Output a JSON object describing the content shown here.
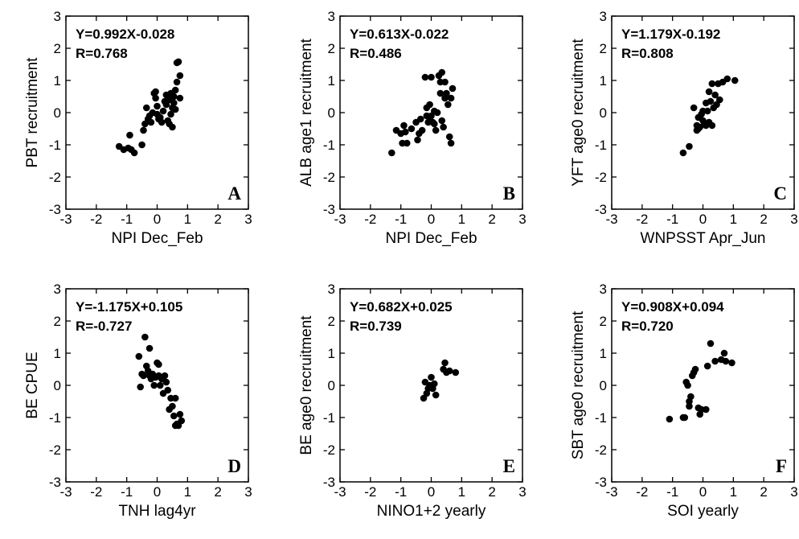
{
  "chart_data": [
    {
      "type": "scatter",
      "panel": "A",
      "xlabel": "NPI Dec_Feb",
      "ylabel": "PBT recruitment",
      "equation": "Y=0.992X-0.028",
      "r_text": "R=0.768",
      "xlim": [
        -3,
        3
      ],
      "ylim": [
        -3,
        3
      ],
      "points": [
        [
          -1.25,
          -1.05
        ],
        [
          -1.1,
          -1.15
        ],
        [
          -0.95,
          -1.1
        ],
        [
          -0.9,
          -0.7
        ],
        [
          -0.85,
          -1.15
        ],
        [
          -0.75,
          -1.25
        ],
        [
          -0.5,
          -1.0
        ],
        [
          -0.45,
          -0.55
        ],
        [
          -0.4,
          -0.35
        ],
        [
          -0.35,
          0.15
        ],
        [
          -0.3,
          -0.2
        ],
        [
          -0.25,
          -0.1
        ],
        [
          -0.2,
          -0.3
        ],
        [
          -0.15,
          0.0
        ],
        [
          -0.1,
          0.6
        ],
        [
          -0.05,
          0.65
        ],
        [
          -0.05,
          0.45
        ],
        [
          0.0,
          0.2
        ],
        [
          0.0,
          -0.05
        ],
        [
          0.05,
          -0.2
        ],
        [
          0.1,
          -0.15
        ],
        [
          0.15,
          -0.3
        ],
        [
          0.2,
          0.05
        ],
        [
          0.25,
          0.35
        ],
        [
          0.3,
          0.25
        ],
        [
          0.3,
          0.55
        ],
        [
          0.35,
          -0.25
        ],
        [
          0.4,
          -0.35
        ],
        [
          0.4,
          0.4
        ],
        [
          0.45,
          0.6
        ],
        [
          0.45,
          -0.05
        ],
        [
          0.5,
          0.15
        ],
        [
          0.5,
          -0.45
        ],
        [
          0.55,
          0.5
        ],
        [
          0.55,
          0.3
        ],
        [
          0.6,
          0.7
        ],
        [
          0.6,
          0.1
        ],
        [
          0.65,
          0.95
        ],
        [
          0.65,
          1.55
        ],
        [
          0.7,
          1.58
        ],
        [
          0.75,
          1.15
        ],
        [
          0.75,
          0.45
        ]
      ]
    },
    {
      "type": "scatter",
      "panel": "B",
      "xlabel": "NPI Dec_Feb",
      "ylabel": "ALB age1 recruitment",
      "equation": "Y=0.613X-0.022",
      "r_text": "R=0.486",
      "xlim": [
        -3,
        3
      ],
      "ylim": [
        -3,
        3
      ],
      "points": [
        [
          -1.3,
          -1.25
        ],
        [
          -1.15,
          -0.55
        ],
        [
          -1.0,
          -0.65
        ],
        [
          -0.95,
          -0.95
        ],
        [
          -0.9,
          -0.4
        ],
        [
          -0.85,
          -0.6
        ],
        [
          -0.8,
          -0.95
        ],
        [
          -0.65,
          -0.5
        ],
        [
          -0.5,
          -0.3
        ],
        [
          -0.45,
          -0.85
        ],
        [
          -0.4,
          -0.65
        ],
        [
          -0.35,
          -0.2
        ],
        [
          -0.3,
          -0.55
        ],
        [
          -0.2,
          1.1
        ],
        [
          -0.15,
          0.15
        ],
        [
          -0.15,
          -0.1
        ],
        [
          -0.1,
          -0.3
        ],
        [
          -0.05,
          -0.15
        ],
        [
          -0.05,
          0.25
        ],
        [
          0.0,
          1.1
        ],
        [
          0.0,
          -0.1
        ],
        [
          0.05,
          -0.3
        ],
        [
          0.1,
          0.05
        ],
        [
          0.1,
          -0.35
        ],
        [
          0.15,
          -0.55
        ],
        [
          0.2,
          0.0
        ],
        [
          0.25,
          1.15
        ],
        [
          0.3,
          0.95
        ],
        [
          0.3,
          0.6
        ],
        [
          0.35,
          1.25
        ],
        [
          0.35,
          -0.25
        ],
        [
          0.4,
          -0.45
        ],
        [
          0.45,
          0.45
        ],
        [
          0.45,
          0.95
        ],
        [
          0.5,
          0.6
        ],
        [
          0.55,
          0.25
        ],
        [
          0.6,
          -0.75
        ],
        [
          0.65,
          0.45
        ],
        [
          0.65,
          -0.95
        ],
        [
          0.7,
          0.75
        ]
      ]
    },
    {
      "type": "scatter",
      "panel": "C",
      "xlabel": "WNPSST Apr_Jun",
      "ylabel": "YFT age0 recruitment",
      "equation": "Y=1.179X-0.192",
      "r_text": "R=0.808",
      "xlim": [
        -3,
        3
      ],
      "ylim": [
        -3,
        3
      ],
      "points": [
        [
          -0.65,
          -1.25
        ],
        [
          -0.45,
          -1.05
        ],
        [
          -0.3,
          0.15
        ],
        [
          -0.2,
          -0.55
        ],
        [
          -0.2,
          -0.4
        ],
        [
          -0.15,
          -0.5
        ],
        [
          -0.15,
          -0.15
        ],
        [
          -0.1,
          -0.45
        ],
        [
          -0.05,
          -0.05
        ],
        [
          0.0,
          0.05
        ],
        [
          0.0,
          -0.25
        ],
        [
          0.05,
          -0.35
        ],
        [
          0.1,
          0.3
        ],
        [
          0.1,
          -0.4
        ],
        [
          0.15,
          0.05
        ],
        [
          0.2,
          0.65
        ],
        [
          0.2,
          -0.3
        ],
        [
          0.25,
          0.35
        ],
        [
          0.3,
          0.9
        ],
        [
          0.3,
          -0.4
        ],
        [
          0.35,
          0.15
        ],
        [
          0.4,
          0.55
        ],
        [
          0.45,
          0.25
        ],
        [
          0.5,
          0.9
        ],
        [
          0.55,
          0.4
        ],
        [
          0.65,
          0.95
        ],
        [
          0.8,
          1.05
        ],
        [
          1.05,
          1.0
        ]
      ]
    },
    {
      "type": "scatter",
      "panel": "D",
      "xlabel": "TNH lag4yr",
      "ylabel": "BE CPUE",
      "equation": "Y=-1.175X+0.105",
      "r_text": "R=-0.727",
      "xlim": [
        -3,
        3
      ],
      "ylim": [
        -3,
        3
      ],
      "points": [
        [
          -0.6,
          0.9
        ],
        [
          -0.55,
          -0.05
        ],
        [
          -0.5,
          0.35
        ],
        [
          -0.45,
          0.3
        ],
        [
          -0.4,
          1.5
        ],
        [
          -0.35,
          0.6
        ],
        [
          -0.3,
          0.45
        ],
        [
          -0.25,
          1.15
        ],
        [
          -0.25,
          0.3
        ],
        [
          -0.2,
          0.2
        ],
        [
          -0.15,
          0.35
        ],
        [
          -0.1,
          0.0
        ],
        [
          -0.05,
          0.25
        ],
        [
          0.0,
          0.7
        ],
        [
          0.05,
          0.3
        ],
        [
          0.05,
          0.65
        ],
        [
          0.1,
          0.0
        ],
        [
          0.15,
          0.2
        ],
        [
          0.2,
          -0.25
        ],
        [
          0.25,
          0.3
        ],
        [
          0.3,
          0.1
        ],
        [
          0.35,
          -0.15
        ],
        [
          0.4,
          -0.75
        ],
        [
          0.45,
          -0.4
        ],
        [
          0.5,
          -0.65
        ],
        [
          0.55,
          -0.95
        ],
        [
          0.6,
          -0.4
        ],
        [
          0.6,
          -1.25
        ],
        [
          0.65,
          -1.2
        ],
        [
          0.7,
          -1.25
        ],
        [
          0.75,
          -0.9
        ],
        [
          0.8,
          -1.1
        ]
      ]
    },
    {
      "type": "scatter",
      "panel": "E",
      "xlabel": "NINO1+2 yearly",
      "ylabel": "BE age0 recruitment",
      "equation": "Y=0.682X+0.025",
      "r_text": "R=0.739",
      "xlim": [
        -3,
        3
      ],
      "ylim": [
        -3,
        3
      ],
      "points": [
        [
          -0.25,
          -0.4
        ],
        [
          -0.2,
          0.1
        ],
        [
          -0.15,
          -0.25
        ],
        [
          -0.1,
          -0.1
        ],
        [
          -0.05,
          0.0
        ],
        [
          0.0,
          0.25
        ],
        [
          0.05,
          -0.1
        ],
        [
          0.1,
          0.05
        ],
        [
          0.15,
          -0.3
        ],
        [
          0.4,
          0.5
        ],
        [
          0.45,
          0.7
        ],
        [
          0.5,
          0.4
        ],
        [
          0.6,
          0.45
        ],
        [
          0.8,
          0.4
        ]
      ]
    },
    {
      "type": "scatter",
      "panel": "F",
      "xlabel": "SOI yearly",
      "ylabel": "SBT age0 recruitment",
      "equation": "Y=0.908X+0.094",
      "r_text": "R=0.720",
      "xlim": [
        -3,
        3
      ],
      "ylim": [
        -3,
        3
      ],
      "points": [
        [
          -1.1,
          -1.05
        ],
        [
          -0.65,
          -1.0
        ],
        [
          -0.6,
          -1.0
        ],
        [
          -0.55,
          0.1
        ],
        [
          -0.5,
          0.0
        ],
        [
          -0.45,
          -0.5
        ],
        [
          -0.45,
          -0.65
        ],
        [
          -0.4,
          -0.35
        ],
        [
          -0.35,
          0.3
        ],
        [
          -0.3,
          0.4
        ],
        [
          -0.25,
          0.5
        ],
        [
          -0.15,
          -0.7
        ],
        [
          -0.1,
          -0.9
        ],
        [
          -0.05,
          -0.75
        ],
        [
          0.1,
          -0.75
        ],
        [
          0.15,
          0.6
        ],
        [
          0.25,
          1.3
        ],
        [
          0.4,
          0.75
        ],
        [
          0.6,
          0.8
        ],
        [
          0.7,
          1.0
        ],
        [
          0.75,
          0.75
        ],
        [
          0.95,
          0.7
        ]
      ]
    }
  ]
}
